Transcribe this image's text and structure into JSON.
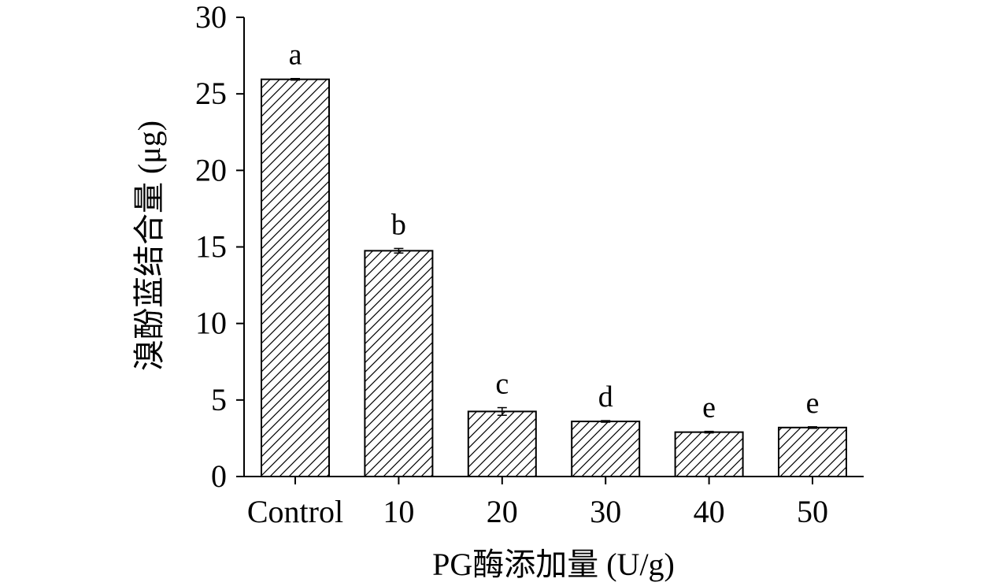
{
  "chart_data": {
    "type": "bar",
    "title": "",
    "xlabel": "PG酶添加量 (U/g)",
    "ylabel": "溴酚蓝结合量 (μg)",
    "categories": [
      "Control",
      "10",
      "20",
      "30",
      "40",
      "50"
    ],
    "values": [
      25.95,
      14.75,
      4.25,
      3.6,
      2.9,
      3.2
    ],
    "errors": [
      0.05,
      0.15,
      0.25,
      0.05,
      0.05,
      0.05
    ],
    "significance": [
      "a",
      "b",
      "c",
      "d",
      "e",
      "e"
    ],
    "ylim": [
      0,
      30
    ],
    "yticks": [
      0,
      5,
      10,
      15,
      20,
      25,
      30
    ],
    "grid": false,
    "bar_fill": "hatched",
    "colors": {
      "bar_edge": "#000000",
      "hatch": "#000000",
      "background": "#ffffff"
    }
  }
}
